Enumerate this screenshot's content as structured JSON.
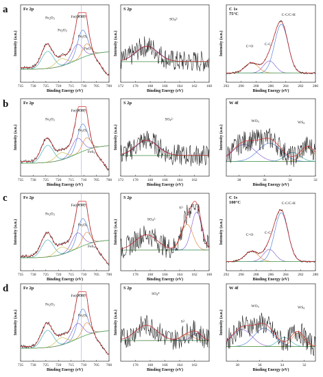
{
  "row_labels": [
    "a",
    "b",
    "c",
    "d"
  ],
  "chart_data": [
    {
      "type": "line",
      "row": 0,
      "col": 0,
      "title": "Fe 2p",
      "xlabel": "Binding Energy (eV)",
      "ylabel": "Intensity (a.u.)",
      "xlim": [
        735,
        700
      ],
      "xticks": [
        735,
        730,
        725,
        720,
        715,
        710,
        705,
        700
      ],
      "annotations": [
        "Fe2O3",
        "Fe2O3",
        "Fe(OOH)",
        "Fe3O4",
        "FeO"
      ],
      "series": [],
      "vline": 711
    },
    {
      "type": "line",
      "row": 0,
      "col": 1,
      "title": "S 2p",
      "xlabel": "Binding Energy (eV)",
      "ylabel": "Intensity (a.u.)",
      "xlim": [
        172,
        160
      ],
      "xticks": [
        172,
        170,
        168,
        166,
        164,
        162,
        160
      ],
      "annotations": [
        "SO4 2-"
      ],
      "series": []
    },
    {
      "type": "line",
      "row": 0,
      "col": 2,
      "title": "C 1s",
      "subtitle": "75°C",
      "xlabel": "Binding Energy (eV)",
      "ylabel": "Intensity (a.u.)",
      "xlim": [
        292,
        280
      ],
      "xticks": [
        292,
        290,
        288,
        286,
        284,
        282,
        280
      ],
      "annotations": [
        "C=O",
        "C-C",
        "C-C/C-H"
      ],
      "series": []
    },
    {
      "type": "line",
      "row": 1,
      "col": 0,
      "title": "Fe 2p",
      "xlabel": "Binding Energy (eV)",
      "ylabel": "Intensity (a.u.)",
      "xlim": [
        735,
        700
      ],
      "xticks": [
        735,
        730,
        725,
        720,
        715,
        710,
        705,
        700
      ],
      "annotations": [
        "Fe2O3",
        "Fe(OOH)",
        "Fe3O4",
        "FeS2"
      ],
      "series": [],
      "vline": 711
    },
    {
      "type": "line",
      "row": 1,
      "col": 1,
      "title": "S 2p",
      "xlabel": "Binding Energy (eV)",
      "ylabel": "Intensity (a.u.)",
      "xlim": [
        172,
        160
      ],
      "xticks": [
        172,
        170,
        168,
        166,
        164,
        162
      ],
      "annotations": [
        "SO4 2-"
      ],
      "series": []
    },
    {
      "type": "line",
      "row": 1,
      "col": 2,
      "title": "W 4f",
      "xlabel": "Binding Energy (eV)",
      "ylabel": "Intensity (a.u.)",
      "xlim": [
        39,
        32
      ],
      "xticks": [
        38,
        36,
        34,
        32
      ],
      "annotations": [
        "WO3",
        "WS2"
      ],
      "series": []
    },
    {
      "type": "line",
      "row": 2,
      "col": 0,
      "title": "Fe 2p",
      "xlabel": "Binding Energy (eV)",
      "ylabel": "Intensity (a.u.)",
      "xlim": [
        735,
        700
      ],
      "xticks": [
        735,
        730,
        725,
        720,
        715,
        710,
        705,
        700
      ],
      "annotations": [
        "Fe2O3",
        "Fe(OOH)",
        "Fe3O4",
        "FeS2"
      ],
      "series": [],
      "vline": 711
    },
    {
      "type": "line",
      "row": 2,
      "col": 1,
      "title": "S 2p",
      "xlabel": "Binding Energy (eV)",
      "ylabel": "Intensity (a.u.)",
      "xlim": [
        172,
        160
      ],
      "xticks": [
        170,
        168,
        166,
        164,
        162,
        160
      ],
      "annotations": [
        "SO4 2-",
        "S2-"
      ],
      "series": []
    },
    {
      "type": "line",
      "row": 2,
      "col": 2,
      "title": "C 1s",
      "subtitle": "100°C",
      "xlabel": "Binding Energy (eV)",
      "ylabel": "Intensity (a.u.)",
      "xlim": [
        292,
        280
      ],
      "xticks": [
        292,
        290,
        288,
        286,
        284,
        282,
        280
      ],
      "annotations": [
        "C=O",
        "C-C",
        "C-C/C-H"
      ],
      "series": []
    },
    {
      "type": "line",
      "row": 3,
      "col": 0,
      "title": "Fe 2p",
      "xlabel": "Binding Energy (eV)",
      "ylabel": "Intensity (a.u.)",
      "xlim": [
        735,
        700
      ],
      "xticks": [
        735,
        730,
        725,
        720,
        715,
        710,
        705,
        700
      ],
      "annotations": [
        "Fe2O3",
        "Fe(OOH)",
        "Fe3O4"
      ],
      "series": [],
      "vline": 711
    },
    {
      "type": "line",
      "row": 3,
      "col": 1,
      "title": "S 2p",
      "xlabel": "Binding Energy (eV)",
      "ylabel": "Intensity (a.u.)",
      "xlim": [
        172,
        160
      ],
      "xticks": [
        170,
        168,
        166,
        164,
        162
      ],
      "annotations": [
        "SO4 2-",
        "S2-"
      ],
      "series": []
    },
    {
      "type": "line",
      "row": 3,
      "col": 2,
      "title": "W 4f",
      "xlabel": "Binding Energy (eV)",
      "ylabel": "Intensity (a.u.)",
      "xlim": [
        39,
        31
      ],
      "xticks": [
        38,
        36,
        34,
        32
      ],
      "annotations": [
        "WO3",
        "WS2"
      ],
      "series": []
    }
  ]
}
